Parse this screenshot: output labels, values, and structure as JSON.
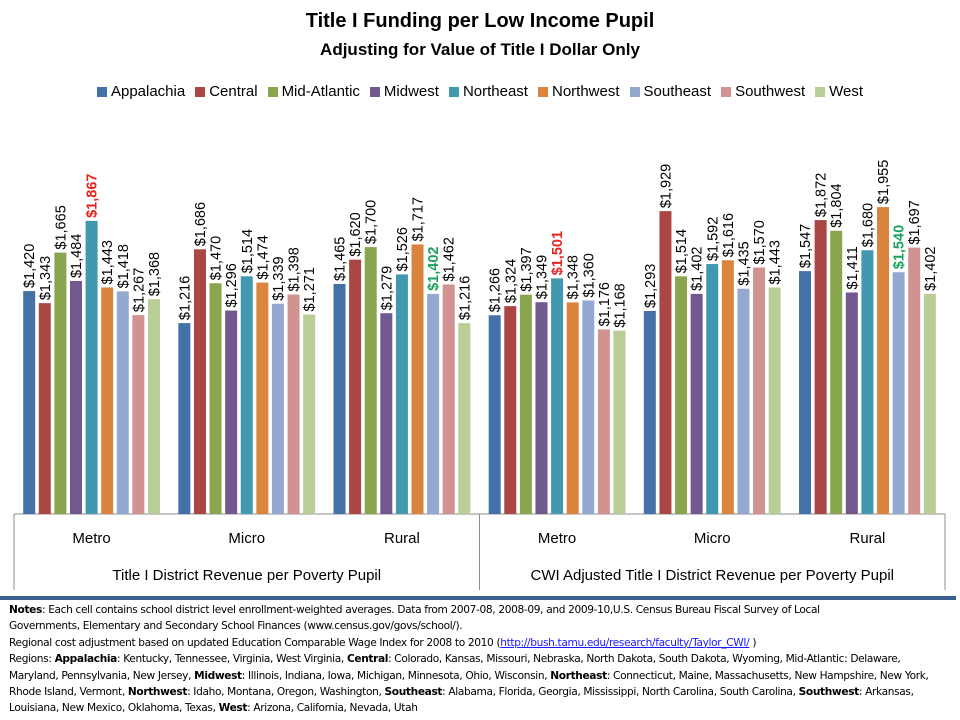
{
  "chart_data": {
    "type": "bar",
    "title": "Title I Funding per Low Income Pupil",
    "subtitle": "Adjusting for Value of Title I Dollar Only",
    "legend_position": "top",
    "ylim": [
      0,
      2100
    ],
    "grid": false,
    "xlabel": "",
    "ylabel": "",
    "groups": [
      {
        "label": "Title I District Revenue per Poverty Pupil",
        "categories": [
          "Metro",
          "Micro",
          "Rural"
        ]
      },
      {
        "label": "CWI Adjusted Title I District Revenue per Poverty Pupil",
        "categories": [
          "Metro",
          "Micro",
          "Rural"
        ]
      }
    ],
    "categories": [
      "Metro",
      "Micro",
      "Rural",
      "Metro",
      "Micro",
      "Rural"
    ],
    "series": [
      {
        "name": "Appalachia",
        "color": "#4472a8",
        "values": [
          1420,
          1216,
          1465,
          1266,
          1293,
          1547
        ]
      },
      {
        "name": "Central",
        "color": "#aa4643",
        "values": [
          1343,
          1686,
          1620,
          1324,
          1929,
          1872
        ]
      },
      {
        "name": "Mid-Atlantic",
        "color": "#89a54e",
        "values": [
          1665,
          1470,
          1700,
          1397,
          1514,
          1804
        ]
      },
      {
        "name": "Midwest",
        "color": "#71588f",
        "values": [
          1484,
          1296,
          1279,
          1349,
          1402,
          1411
        ]
      },
      {
        "name": "Northeast",
        "color": "#4198af",
        "values": [
          1867,
          1514,
          1526,
          1501,
          1592,
          1680
        ]
      },
      {
        "name": "Northwest",
        "color": "#db843d",
        "values": [
          1443,
          1474,
          1717,
          1348,
          1616,
          1955
        ]
      },
      {
        "name": "Southeast",
        "color": "#93a9cf",
        "values": [
          1418,
          1339,
          1402,
          1360,
          1435,
          1540
        ]
      },
      {
        "name": "Southwest",
        "color": "#d19392",
        "values": [
          1267,
          1398,
          1462,
          1176,
          1570,
          1697
        ]
      },
      {
        "name": "West",
        "color": "#b9cd96",
        "values": [
          1368,
          1271,
          1216,
          1168,
          1443,
          1402
        ]
      }
    ],
    "highlights": [
      {
        "series": "Northeast",
        "category_index": 0,
        "color": "#e8231f"
      },
      {
        "series": "Southeast",
        "category_index": 2,
        "color": "#1aa35a"
      },
      {
        "series": "Northeast",
        "category_index": 3,
        "color": "#e8231f"
      },
      {
        "series": "Southeast",
        "category_index": 5,
        "color": "#1aa35a"
      }
    ],
    "value_prefix": "$"
  },
  "notes": {
    "line1_label": "Notes",
    "line1_text": ": Each cell contains school district level enrollment-weighted averages. Data from 2007-08, 2008-09, and 2009-10,U.S. Census Bureau Fiscal Survey of Local",
    "line2_text": "Governments,  Elementary and Secondary School Finances (www.census.gov/govs/school/).",
    "line3_text": "Regional cost adjustment based on updated Education Comparable Wage Index for 2008 to  2010 (",
    "line3_link": "http://bush.tamu.edu/research/faculty/Taylor_CWI/",
    "line3_end": " )",
    "regions_prefix": "Regions: ",
    "regions": [
      {
        "name": "Appalachia",
        "text": ":  Kentucky,  Tennessee,  Virginia, West Virginia, "
      },
      {
        "name": "Central",
        "text": ": Colorado, Kansas, Missouri, Nebraska, North Dakota, South Dakota, Wyoming,  Mid-Atlantic: Delaware, Maryland, Pennsylvania, New Jersey,  "
      },
      {
        "name": "Midwest",
        "text": ":  Illinois, Indiana, Iowa, Michigan, Minnesota, Ohio, Wisconsin, "
      },
      {
        "name": "Northeast",
        "text": ": Connecticut, Maine, Massachusetts, New Hampshire, New  York,  Rhode  Island, Vermont,  "
      },
      {
        "name": "Northwest",
        "text": ": Idaho, Montana, Oregon,  Washington, "
      },
      {
        "name": "Southeast",
        "text": ":  Alabama, Florida, Georgia, Mississippi, North Carolina, South Carolina, "
      },
      {
        "name": "Southwest",
        "text": ": Arkansas, Louisiana, New Mexico, Oklahoma, Texas, "
      },
      {
        "name": "West",
        "text": ": Arizona, California, Nevada, Utah"
      }
    ]
  }
}
